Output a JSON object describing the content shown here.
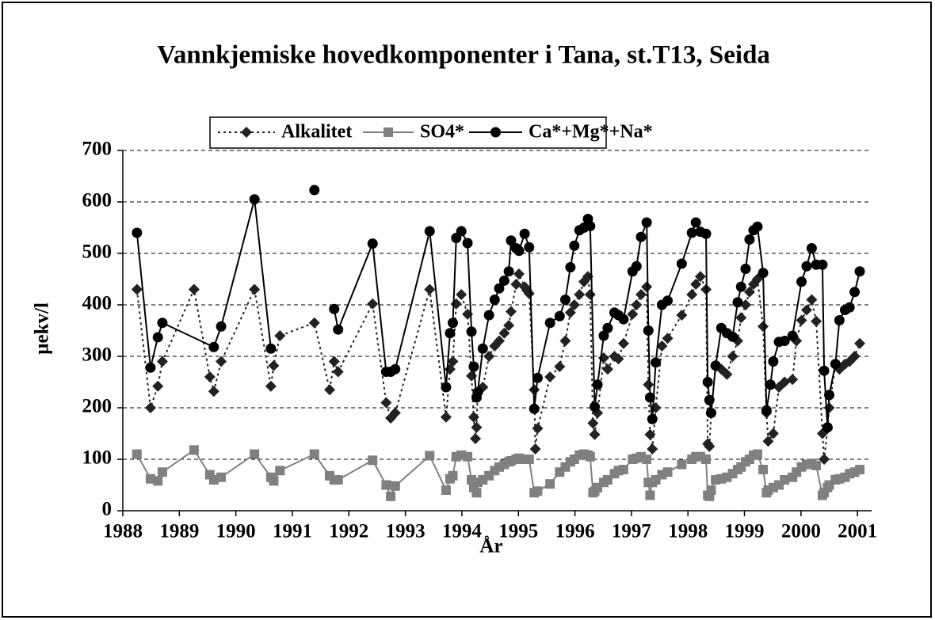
{
  "chart_data": {
    "type": "line",
    "title": "Vannkjemiske hovedkomponenter i Tana, st.T13, Seida",
    "xlabel": "År",
    "ylabel": "µekv/l",
    "xlim": [
      1988,
      2001.25
    ],
    "xticks": [
      1988,
      1989,
      1990,
      1991,
      1992,
      1993,
      1994,
      1995,
      1996,
      1997,
      1998,
      1999,
      2000,
      2001
    ],
    "ylim": [
      0,
      700
    ],
    "yticks": [
      0,
      100,
      200,
      300,
      400,
      500,
      600,
      700
    ],
    "grid": true,
    "legend": "top",
    "series": [
      {
        "name": "Alkalitet",
        "color": "#222222",
        "marker": "diamond",
        "line_style": "dotted",
        "x": [
          1988.25,
          1988.49,
          1988.62,
          1988.7,
          1989.26,
          1989.54,
          1989.61,
          1989.74,
          1990.33,
          1990.62,
          1990.67,
          1990.78,
          1991.39,
          1991.66,
          1991.74,
          1991.81,
          1992.42,
          1992.66,
          1992.74,
          1992.82,
          1993.43,
          1993.72,
          1993.79,
          1993.84,
          1993.9,
          1993.99,
          1994.1,
          1994.17,
          1994.21,
          1994.24,
          1994.26,
          1994.28,
          1994.37,
          1994.48,
          1994.58,
          1994.66,
          1994.75,
          1994.83,
          1994.87,
          1994.96,
          1995.01,
          1995.11,
          1995.15,
          1995.19,
          1995.28,
          1995.3,
          1995.34,
          1995.56,
          1995.73,
          1995.83,
          1995.92,
          1995.99,
          1996.08,
          1996.16,
          1996.23,
          1996.27,
          1996.32,
          1996.35,
          1996.4,
          1996.51,
          1996.58,
          1996.7,
          1996.77,
          1996.86,
          1997.02,
          1997.09,
          1997.17,
          1997.27,
          1997.3,
          1997.33,
          1997.37,
          1997.43,
          1997.54,
          1997.64,
          1997.89,
          1998.07,
          1998.14,
          1998.22,
          1998.32,
          1998.35,
          1998.38,
          1998.41,
          1998.49,
          1998.59,
          1998.69,
          1998.79,
          1998.88,
          1998.94,
          1999.02,
          1999.09,
          1999.16,
          1999.23,
          1999.33,
          1999.39,
          1999.42,
          1999.51,
          1999.61,
          1999.71,
          1999.85,
          1999.92,
          2000.01,
          2000.1,
          2000.19,
          2000.27,
          2000.38,
          2000.41,
          2000.47,
          2000.5,
          2000.61,
          2000.68,
          2000.78,
          2000.86,
          2000.95,
          2001.04
        ],
        "values": [
          430,
          200,
          242,
          290,
          430,
          260,
          232,
          290,
          430,
          242,
          282,
          340,
          365,
          235,
          290,
          270,
          402,
          210,
          180,
          190,
          430,
          182,
          275,
          290,
          402,
          420,
          382,
          262,
          182,
          140,
          162,
          230,
          240,
          300,
          320,
          330,
          345,
          360,
          387,
          440,
          460,
          435,
          428,
          422,
          235,
          120,
          160,
          260,
          280,
          330,
          385,
          400,
          420,
          445,
          455,
          420,
          170,
          148,
          190,
          297,
          275,
          300,
          295,
          325,
          382,
          400,
          420,
          435,
          245,
          148,
          120,
          200,
          320,
          335,
          380,
          420,
          440,
          455,
          430,
          130,
          125,
          190,
          280,
          275,
          265,
          300,
          330,
          375,
          400,
          425,
          440,
          450,
          358,
          190,
          135,
          150,
          240,
          250,
          255,
          330,
          370,
          390,
          410,
          368,
          150,
          100,
          160,
          200,
          285,
          275,
          285,
          290,
          300,
          325
        ]
      },
      {
        "name": "SO4*",
        "color": "#808080",
        "marker": "square",
        "line_style": "solid",
        "x": [
          1988.25,
          1988.49,
          1988.62,
          1988.7,
          1989.26,
          1989.54,
          1989.61,
          1989.74,
          1990.33,
          1990.62,
          1990.67,
          1990.78,
          1991.39,
          1991.66,
          1991.74,
          1991.81,
          1992.42,
          1992.66,
          1992.74,
          1992.82,
          1993.43,
          1993.72,
          1993.79,
          1993.84,
          1993.9,
          1993.99,
          1994.1,
          1994.17,
          1994.21,
          1994.26,
          1994.28,
          1994.37,
          1994.48,
          1994.58,
          1994.66,
          1994.75,
          1994.83,
          1994.87,
          1994.96,
          1995.01,
          1995.11,
          1995.19,
          1995.28,
          1995.34,
          1995.56,
          1995.73,
          1995.83,
          1995.92,
          1995.99,
          1996.08,
          1996.16,
          1996.23,
          1996.27,
          1996.32,
          1996.35,
          1996.4,
          1996.51,
          1996.58,
          1996.7,
          1996.77,
          1996.86,
          1997.02,
          1997.09,
          1997.17,
          1997.27,
          1997.3,
          1997.33,
          1997.37,
          1997.43,
          1997.54,
          1997.64,
          1997.89,
          1998.07,
          1998.14,
          1998.22,
          1998.32,
          1998.35,
          1998.38,
          1998.41,
          1998.49,
          1998.59,
          1998.69,
          1998.79,
          1998.88,
          1998.94,
          1999.02,
          1999.09,
          1999.16,
          1999.23,
          1999.33,
          1999.39,
          1999.42,
          1999.51,
          1999.61,
          1999.71,
          1999.85,
          1999.92,
          2000.01,
          2000.1,
          2000.19,
          2000.27,
          2000.38,
          2000.41,
          2000.47,
          2000.5,
          2000.61,
          2000.68,
          2000.78,
          2000.86,
          2000.95,
          2001.04
        ],
        "values": [
          110,
          62,
          58,
          75,
          118,
          70,
          60,
          65,
          110,
          65,
          58,
          78,
          110,
          68,
          60,
          60,
          98,
          50,
          28,
          48,
          107,
          40,
          62,
          68,
          105,
          108,
          105,
          60,
          45,
          35,
          55,
          60,
          68,
          78,
          85,
          90,
          95,
          97,
          100,
          102,
          100,
          100,
          35,
          38,
          52,
          75,
          85,
          95,
          100,
          108,
          110,
          108,
          105,
          35,
          38,
          45,
          55,
          60,
          72,
          78,
          80,
          100,
          102,
          105,
          100,
          55,
          30,
          55,
          60,
          70,
          75,
          90,
          100,
          105,
          105,
          100,
          30,
          28,
          40,
          60,
          62,
          65,
          72,
          80,
          85,
          95,
          100,
          108,
          110,
          80,
          35,
          40,
          45,
          50,
          60,
          65,
          75,
          85,
          90,
          92,
          88,
          30,
          35,
          45,
          50,
          60,
          62,
          65,
          72,
          75,
          80
        ]
      },
      {
        "name": "Ca*+Mg*+Na*",
        "color": "#000000",
        "marker": "circle",
        "line_style": "solid",
        "x": [
          1988.25,
          1988.49,
          1988.62,
          1988.7,
          1989.61,
          1989.74,
          1990.33,
          1990.62,
          1990.78,
          1991.39,
          1991.66,
          1991.74,
          1991.81,
          1992.42,
          1992.66,
          1992.74,
          1992.82,
          1993.43,
          1993.72,
          1993.79,
          1993.84,
          1993.9,
          1993.99,
          1994.1,
          1994.17,
          1994.21,
          1994.26,
          1994.28,
          1994.37,
          1994.48,
          1994.58,
          1994.66,
          1994.75,
          1994.83,
          1994.87,
          1994.96,
          1995.01,
          1995.11,
          1995.19,
          1995.28,
          1995.34,
          1995.56,
          1995.73,
          1995.83,
          1995.92,
          1995.99,
          1996.08,
          1996.16,
          1996.23,
          1996.27,
          1996.35,
          1996.4,
          1996.51,
          1996.58,
          1996.7,
          1996.77,
          1996.86,
          1997.02,
          1997.09,
          1997.17,
          1997.27,
          1997.3,
          1997.33,
          1997.37,
          1997.43,
          1997.54,
          1997.64,
          1997.89,
          1998.07,
          1998.14,
          1998.22,
          1998.32,
          1998.35,
          1998.38,
          1998.41,
          1998.49,
          1998.59,
          1998.69,
          1998.79,
          1998.88,
          1998.94,
          1999.02,
          1999.09,
          1999.16,
          1999.23,
          1999.33,
          1999.39,
          1999.46,
          1999.51,
          1999.61,
          1999.71,
          1999.85,
          2000.01,
          2000.1,
          2000.19,
          2000.27,
          2000.38,
          2000.41,
          2000.47,
          2000.5,
          2000.61,
          2000.68,
          2000.78,
          2000.86,
          2000.95,
          2001.04
        ],
        "values": [
          540,
          278,
          337,
          365,
          318,
          358,
          605,
          315,
          null,
          623,
          null,
          392,
          352,
          519,
          270,
          270,
          275,
          543,
          240,
          345,
          365,
          530,
          543,
          520,
          348,
          280,
          220,
          230,
          315,
          380,
          410,
          432,
          447,
          465,
          525,
          510,
          505,
          538,
          512,
          198,
          258,
          365,
          378,
          410,
          473,
          515,
          545,
          550,
          567,
          553,
          202,
          245,
          340,
          355,
          385,
          380,
          372,
          465,
          475,
          532,
          560,
          350,
          220,
          178,
          288,
          400,
          408,
          480,
          540,
          560,
          542,
          538,
          250,
          215,
          190,
          282,
          355,
          345,
          338,
          405,
          435,
          470,
          527,
          545,
          552,
          462,
          195,
          245,
          290,
          328,
          330,
          340,
          445,
          475,
          510,
          478,
          478,
          272,
          162,
          225,
          285,
          370,
          390,
          395,
          425,
          465
        ]
      }
    ]
  }
}
